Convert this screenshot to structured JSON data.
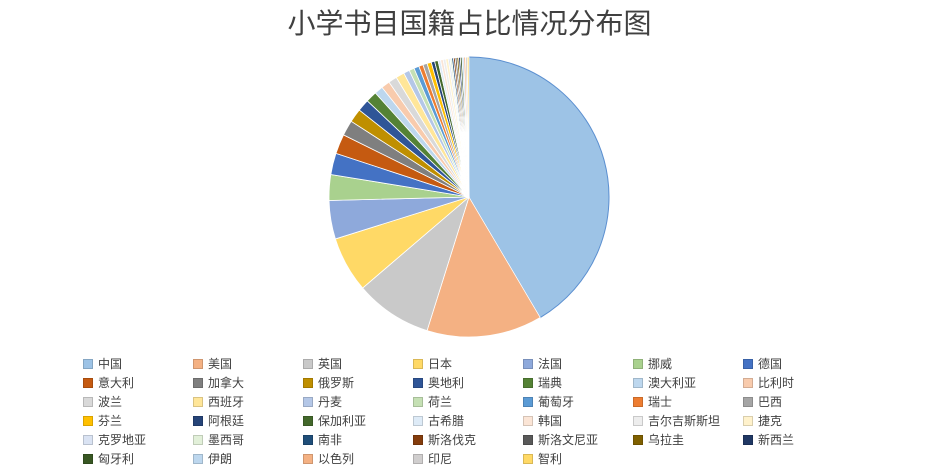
{
  "chart_data": {
    "type": "pie",
    "title": "小学书目国籍占比情况分布图",
    "legend_position": "bottom",
    "categories": [
      "中国",
      "美国",
      "英国",
      "日本",
      "法国",
      "挪威",
      "德国",
      "意大利",
      "加拿大",
      "俄罗斯",
      "奥地利",
      "瑞典",
      "澳大利亚",
      "比利时",
      "波兰",
      "西班牙",
      "丹麦",
      "荷兰",
      "葡萄牙",
      "瑞士",
      "巴西",
      "芬兰",
      "阿根廷",
      "保加利亚",
      "古希腊",
      "韩国",
      "吉尔吉斯斯坦",
      "捷克",
      "克罗地亚",
      "墨西哥",
      "南非",
      "斯洛伐克",
      "斯洛文尼亚",
      "乌拉圭",
      "新西兰",
      "匈牙利",
      "伊朗",
      "以色列",
      "印尼",
      "智利"
    ],
    "values": [
      42.0,
      13.5,
      9.0,
      6.5,
      4.5,
      3.0,
      2.5,
      2.3,
      1.8,
      1.6,
      1.4,
      1.3,
      1.0,
      1.0,
      1.0,
      1.0,
      0.7,
      0.6,
      0.6,
      0.5,
      0.5,
      0.5,
      0.4,
      0.4,
      0.3,
      0.3,
      0.3,
      0.3,
      0.2,
      0.2,
      0.2,
      0.2,
      0.2,
      0.2,
      0.2,
      0.2,
      0.2,
      0.2,
      0.2,
      0.2
    ],
    "colors": [
      "#9DC3E6",
      "#F4B183",
      "#C9C9C9",
      "#FFD966",
      "#8EA9DB",
      "#A9D18E",
      "#4472C4",
      "#C55A11",
      "#7F7F7F",
      "#BF8F00",
      "#2F5597",
      "#548235",
      "#BDD7EE",
      "#F8CBAD",
      "#D9D9D9",
      "#FFE699",
      "#B4C7E7",
      "#C5E0B4",
      "#5B9BD5",
      "#ED7D31",
      "#A5A5A5",
      "#FFC000",
      "#264478",
      "#43682B",
      "#DEEBF7",
      "#FBE5D6",
      "#EDEDED",
      "#FFF2CC",
      "#DAE3F3",
      "#E2F0D9",
      "#1F4E79",
      "#843C0C",
      "#595959",
      "#7F6000",
      "#203864",
      "#385723",
      "#BDD7EE",
      "#F4B183",
      "#D0CECE",
      "#FFD966"
    ]
  }
}
